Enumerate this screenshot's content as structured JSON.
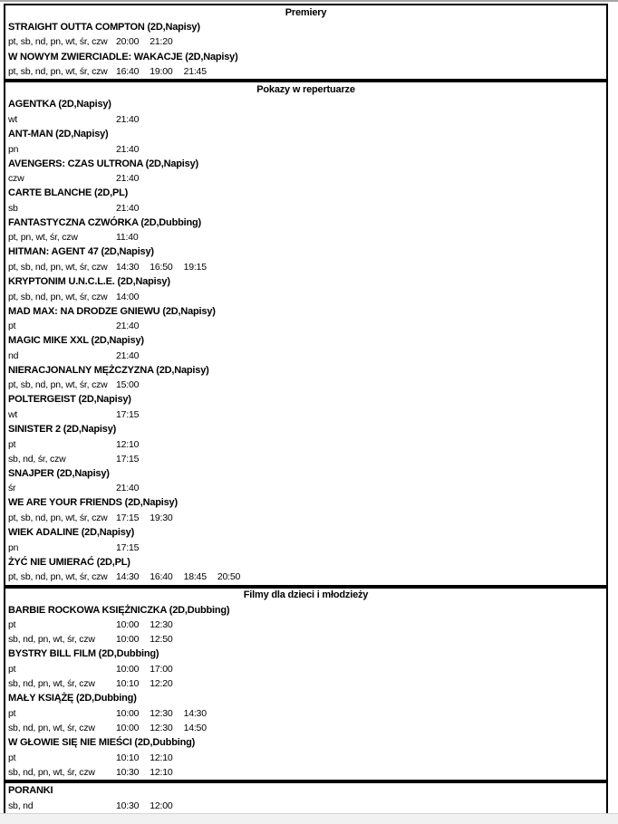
{
  "colors": {
    "border": "#000000",
    "page_background": "#ffffff",
    "outside_background": "#f1f1f1",
    "top_edge": "#a6a6a6",
    "text": "#000000"
  },
  "sections": [
    {
      "header": "Premiery",
      "header_align": "center",
      "movies": [
        {
          "title": "STRAIGHT OUTTA COMPTON (2D,Napisy)",
          "showings": [
            {
              "days": "pt, sb, nd, pn, wt, śr, czw",
              "times": [
                "20:00",
                "21:20"
              ]
            }
          ]
        },
        {
          "title": "W NOWYM ZWIERCIADLE: WAKACJE (2D,Napisy)",
          "showings": [
            {
              "days": "pt, sb, nd, pn, wt, śr, czw",
              "times": [
                "16:40",
                "19:00",
                "21:45"
              ]
            }
          ]
        }
      ]
    },
    {
      "header": "Pokazy w repertuarze",
      "header_align": "center",
      "movies": [
        {
          "title": "AGENTKA (2D,Napisy)",
          "showings": [
            {
              "days": "wt",
              "times": [
                "21:40"
              ]
            }
          ]
        },
        {
          "title": "ANT-MAN (2D,Napisy)",
          "showings": [
            {
              "days": "pn",
              "times": [
                "21:40"
              ]
            }
          ]
        },
        {
          "title": "AVENGERS: CZAS ULTRONA (2D,Napisy)",
          "showings": [
            {
              "days": "czw",
              "times": [
                "21:40"
              ]
            }
          ]
        },
        {
          "title": "CARTE BLANCHE (2D,PL)",
          "showings": [
            {
              "days": "sb",
              "times": [
                "21:40"
              ]
            }
          ]
        },
        {
          "title": "FANTASTYCZNA CZWÓRKA (2D,Dubbing)",
          "showings": [
            {
              "days": "pt, pn, wt, śr, czw",
              "times": [
                "11:40"
              ]
            }
          ]
        },
        {
          "title": "HITMAN: AGENT 47 (2D,Napisy)",
          "showings": [
            {
              "days": "pt, sb, nd, pn, wt, śr, czw",
              "times": [
                "14:30",
                "16:50",
                "19:15"
              ]
            }
          ]
        },
        {
          "title": "KRYPTONIM U.N.C.L.E. (2D,Napisy)",
          "showings": [
            {
              "days": "pt, sb, nd, pn, wt, śr, czw",
              "times": [
                "14:00"
              ]
            }
          ]
        },
        {
          "title": "MAD MAX: NA DRODZE GNIEWU (2D,Napisy)",
          "showings": [
            {
              "days": "pt",
              "times": [
                "21:40"
              ]
            }
          ]
        },
        {
          "title": "MAGIC MIKE XXL (2D,Napisy)",
          "showings": [
            {
              "days": "nd",
              "times": [
                "21:40"
              ]
            }
          ]
        },
        {
          "title": "NIERACJONALNY MĘŻCZYZNA (2D,Napisy)",
          "showings": [
            {
              "days": "pt, sb, nd, pn, wt, śr, czw",
              "times": [
                "15:00"
              ]
            }
          ]
        },
        {
          "title": "POLTERGEIST (2D,Napisy)",
          "showings": [
            {
              "days": "wt",
              "times": [
                "17:15"
              ]
            }
          ]
        },
        {
          "title": "SINISTER 2 (2D,Napisy)",
          "showings": [
            {
              "days": "pt",
              "times": [
                "12:10"
              ]
            },
            {
              "days": "sb, nd, śr, czw",
              "times": [
                "17:15"
              ]
            }
          ]
        },
        {
          "title": "SNAJPER (2D,Napisy)",
          "showings": [
            {
              "days": "śr",
              "times": [
                "21:40"
              ]
            }
          ]
        },
        {
          "title": "WE ARE YOUR FRIENDS (2D,Napisy)",
          "showings": [
            {
              "days": "pt, sb, nd, pn, wt, śr, czw",
              "times": [
                "17:15",
                "19:30"
              ]
            }
          ]
        },
        {
          "title": "WIEK ADALINE (2D,Napisy)",
          "showings": [
            {
              "days": "pn",
              "times": [
                "17:15"
              ]
            }
          ]
        },
        {
          "title": "ŻYĆ NIE UMIERAĆ (2D,PL)",
          "showings": [
            {
              "days": "pt, sb, nd, pn, wt, śr, czw",
              "times": [
                "14:30",
                "16:40",
                "18:45",
                "20:50"
              ]
            }
          ]
        }
      ]
    },
    {
      "header": "Filmy dla dzieci i młodzieży",
      "header_align": "center",
      "movies": [
        {
          "title": "BARBIE ROCKOWA KSIĘŻNICZKA (2D,Dubbing)",
          "showings": [
            {
              "days": "pt",
              "times": [
                "10:00",
                "12:30"
              ]
            },
            {
              "days": "sb, nd, pn, wt, śr, czw",
              "times": [
                "10:00",
                "12:50"
              ]
            }
          ]
        },
        {
          "title": "BYSTRY BILL FILM (2D,Dubbing)",
          "showings": [
            {
              "days": "pt",
              "times": [
                "10:00",
                "17:00"
              ]
            },
            {
              "days": "sb, nd, pn, wt, śr, czw",
              "times": [
                "10:10",
                "12:20"
              ]
            }
          ]
        },
        {
          "title": "MAŁY KSIĄŻĘ (2D,Dubbing)",
          "showings": [
            {
              "days": "pt",
              "times": [
                "10:00",
                "12:30",
                "14:30"
              ]
            },
            {
              "days": "sb, nd, pn, wt, śr, czw",
              "times": [
                "10:00",
                "12:30",
                "14:50"
              ]
            }
          ]
        },
        {
          "title": "W GŁOWIE SIĘ NIE MIEŚCI (2D,Dubbing)",
          "showings": [
            {
              "days": "pt",
              "times": [
                "10:10",
                "12:10"
              ]
            },
            {
              "days": "sb, nd, pn, wt, śr, czw",
              "times": [
                "10:30",
                "12:10"
              ]
            }
          ]
        }
      ]
    },
    {
      "header": "PORANKI",
      "header_align": "left",
      "movies": [
        {
          "title": "",
          "showings": [
            {
              "days": "sb, nd",
              "times": [
                "10:30",
                "12:00"
              ]
            }
          ]
        }
      ]
    }
  ]
}
